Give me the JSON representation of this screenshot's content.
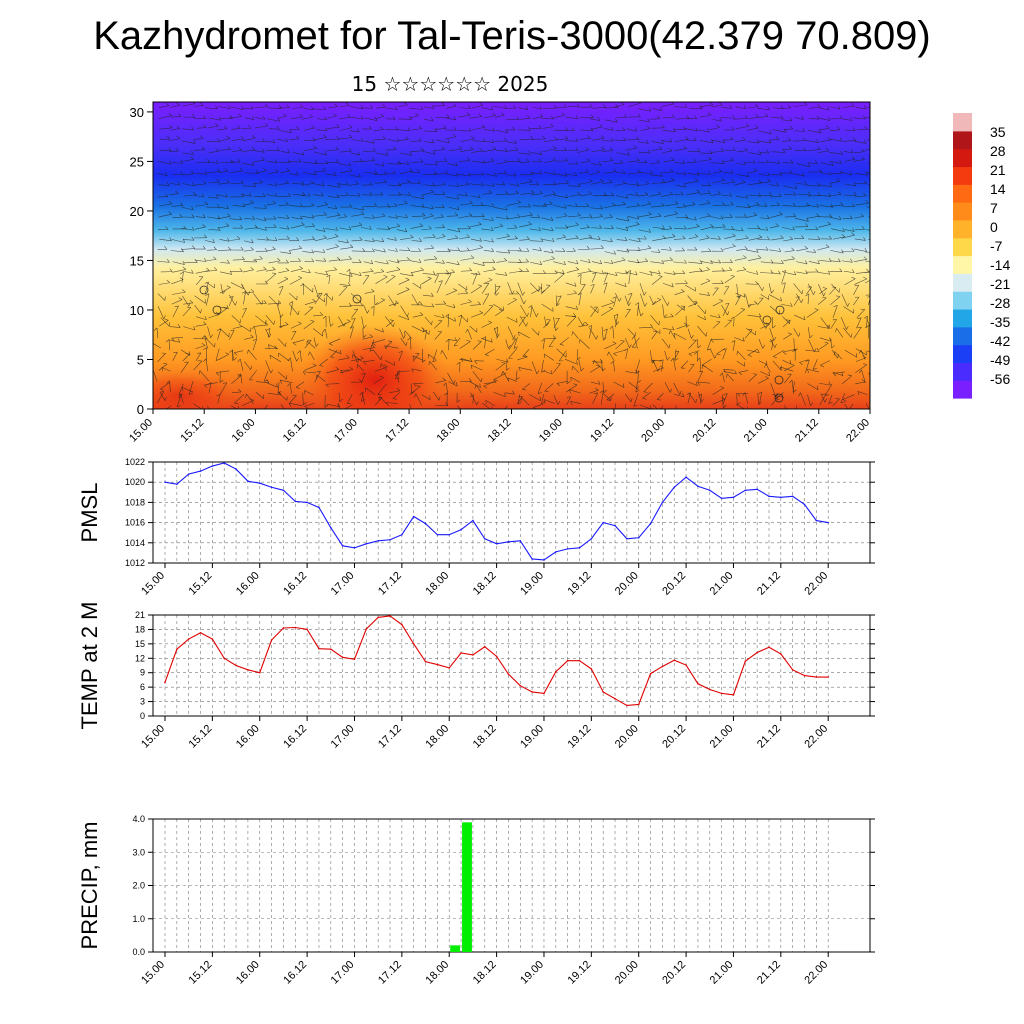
{
  "page": {
    "title": "Kazhydromet for Tal-Teris-3000(42.379 70.809)",
    "subtitle": "15 ☆☆☆☆☆☆ 2025"
  },
  "colors": {
    "pmsl_line": "#1a1aff",
    "temp_line": "#e00000",
    "precip_bar": "#00ee00",
    "palette": [
      "#7a1fff",
      "#4a2cff",
      "#1b3ff5",
      "#1a6ee8",
      "#23a6e8",
      "#7fd3f0",
      "#d8ecf2",
      "#fff6a8",
      "#ffd84a",
      "#ffb22a",
      "#ff8c1a",
      "#ff6a12",
      "#f43a0f",
      "#d41a10",
      "#b0151a",
      "#f0b8b8"
    ]
  },
  "chart_data": [
    {
      "type": "heatmap",
      "title": "",
      "xlabel": "",
      "ylabel": "",
      "x_ticks": [
        "15.00",
        "15.12",
        "16.00",
        "16.12",
        "17.00",
        "17.12",
        "18.00",
        "18.12",
        "19.00",
        "19.12",
        "20.00",
        "20.12",
        "21.00",
        "21.12",
        "22.00"
      ],
      "y_ticks": [
        0,
        5,
        10,
        15,
        20,
        25,
        30
      ],
      "ylim": [
        0,
        31
      ],
      "overlay": "wind vectors",
      "colorbar_labels": [
        35,
        28,
        21,
        14,
        7,
        0,
        -7,
        -14,
        -21,
        -28,
        -35,
        -42,
        -49,
        -56
      ],
      "colorbar_range": [
        -63,
        42
      ]
    },
    {
      "type": "line",
      "ylabel": "PMSL",
      "x_ticks": [
        "15.00",
        "15.12",
        "16.00",
        "16.12",
        "17.00",
        "17.12",
        "18.00",
        "18.12",
        "19.00",
        "19.12",
        "20.00",
        "20.12",
        "21.00",
        "21.12",
        "22.00"
      ],
      "y_ticks": [
        1012,
        1014,
        1016,
        1018,
        1020,
        1022
      ],
      "ylim": [
        1012,
        1022
      ],
      "grid": true,
      "x_hours": [
        0,
        3,
        6,
        9,
        12,
        15,
        18,
        21,
        24,
        27,
        30,
        33,
        36,
        39,
        42,
        45,
        48,
        51,
        54,
        57,
        60,
        63,
        66,
        69,
        72,
        75,
        78,
        81,
        84,
        87,
        90,
        93,
        96,
        99,
        102,
        105,
        108,
        111,
        114,
        117,
        120,
        123,
        126,
        129,
        132,
        135,
        138,
        141,
        144,
        147,
        150,
        153,
        156,
        159,
        162,
        165,
        168
      ],
      "values": [
        1020.0,
        1019.8,
        1020.8,
        1021.1,
        1021.6,
        1021.9,
        1021.3,
        1020.1,
        1019.9,
        1019.5,
        1019.2,
        1018.1,
        1018.0,
        1017.5,
        1015.5,
        1013.7,
        1013.5,
        1013.9,
        1014.2,
        1014.3,
        1014.8,
        1016.6,
        1015.9,
        1014.8,
        1014.8,
        1015.3,
        1016.2,
        1014.4,
        1013.9,
        1014.1,
        1014.2,
        1012.4,
        1012.3,
        1013.1,
        1013.4,
        1013.5,
        1014.4,
        1016.0,
        1015.7,
        1014.4,
        1014.5,
        1015.9,
        1018.0,
        1019.5,
        1020.5,
        1019.6,
        1019.2,
        1018.4,
        1018.5,
        1019.2,
        1019.3,
        1018.6,
        1018.5,
        1018.6,
        1017.8,
        1016.2,
        1016.0
      ]
    },
    {
      "type": "line",
      "ylabel": "TEMP at 2 M",
      "x_ticks": [
        "15.00",
        "15.12",
        "16.00",
        "16.12",
        "17.00",
        "17.12",
        "18.00",
        "18.12",
        "19.00",
        "19.12",
        "20.00",
        "20.12",
        "21.00",
        "21.12",
        "22.00"
      ],
      "y_ticks": [
        0,
        3,
        6,
        9,
        12,
        15,
        18,
        21
      ],
      "ylim": [
        0,
        21
      ],
      "grid": true,
      "x_hours": [
        0,
        3,
        6,
        9,
        12,
        15,
        18,
        21,
        24,
        27,
        30,
        33,
        36,
        39,
        42,
        45,
        48,
        51,
        54,
        57,
        60,
        63,
        66,
        69,
        72,
        75,
        78,
        81,
        84,
        87,
        90,
        93,
        96,
        99,
        102,
        105,
        108,
        111,
        114,
        117,
        120,
        123,
        126,
        129,
        132,
        135,
        138,
        141,
        144,
        147,
        150,
        153,
        156,
        159,
        162,
        165,
        168
      ],
      "values": [
        7.0,
        13.9,
        16.0,
        17.3,
        16.0,
        12.0,
        10.5,
        9.6,
        9.0,
        15.8,
        18.3,
        18.4,
        18.0,
        14.0,
        13.9,
        12.2,
        11.8,
        18.1,
        20.5,
        20.8,
        19.0,
        15.0,
        11.3,
        10.7,
        10.0,
        13.1,
        12.7,
        14.4,
        12.4,
        8.7,
        6.3,
        5.0,
        4.7,
        9.2,
        11.5,
        11.5,
        9.8,
        5.0,
        3.6,
        2.2,
        2.4,
        8.8,
        10.3,
        11.6,
        10.6,
        6.7,
        5.5,
        4.7,
        4.4,
        11.4,
        13.2,
        14.3,
        12.9,
        9.6,
        8.4,
        8.1,
        8.1
      ]
    },
    {
      "type": "bar",
      "ylabel": "PRECIP, mm",
      "x_ticks": [
        "15.00",
        "15.12",
        "16.00",
        "16.12",
        "17.00",
        "17.12",
        "18.00",
        "18.12",
        "19.00",
        "19.12",
        "20.00",
        "20.12",
        "21.00",
        "21.12",
        "22.00"
      ],
      "y_ticks": [
        "0.0",
        "1.0",
        "2.0",
        "3.0",
        "4.0"
      ],
      "ylim": [
        0,
        4
      ],
      "grid": true,
      "bars": [
        {
          "start_hour": 72,
          "end_hour": 75,
          "value": 0.2
        },
        {
          "start_hour": 75,
          "end_hour": 78,
          "value": 3.9
        }
      ]
    }
  ]
}
